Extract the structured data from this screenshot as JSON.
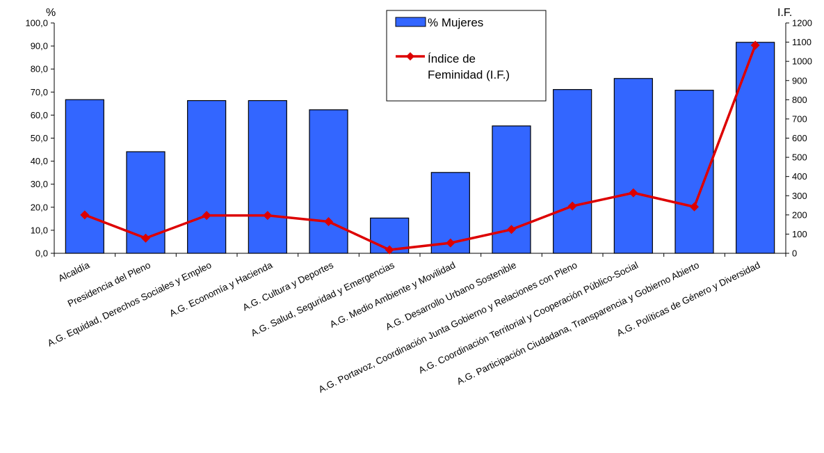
{
  "chart_data": {
    "type": "bar",
    "categories": [
      "Alcaldía",
      "Presidencia del Pleno",
      "A.G. Equidad, Derechos Sociales y Empleo",
      "A.G. Economía y Hacienda",
      "A.G. Cultura y Deportes",
      "A.G. Salud, Seguridad y Emergencias",
      "A.G. Medio Ambiente y Movilidad",
      "A.G. Desarrollo Urbano Sostenible",
      "A.G. Portavoz, Coordinación Junta Gobierno y Relaciones con Pleno",
      "A.G. Coordinación Territorial y Cooperación Público-Social",
      "A.G. Participación Ciudadana, Transparencia y Gobierno Abierto",
      "A.G. Políticas de Género y Diversidad"
    ],
    "series": [
      {
        "name": "% Mujeres",
        "type": "bar",
        "axis": "left",
        "color": "#3366ff",
        "values": [
          66.7,
          44.1,
          66.3,
          66.3,
          62.3,
          15.3,
          35.1,
          55.3,
          71.1,
          75.9,
          70.8,
          91.6
        ]
      },
      {
        "name": "Índice de Feminidad (I.F.)",
        "type": "line",
        "axis": "right",
        "color": "#dd0000",
        "values": [
          200,
          79,
          197,
          197,
          165,
          18,
          54,
          124,
          246,
          315,
          242,
          1084
        ]
      }
    ],
    "y_left": {
      "unit": "%",
      "range": [
        0,
        100
      ],
      "ticks": [
        "0,0",
        "10,0",
        "20,0",
        "30,0",
        "40,0",
        "50,0",
        "60,0",
        "70,0",
        "80,0",
        "90,0",
        "100,0"
      ]
    },
    "y_right": {
      "unit": "I.F.",
      "range": [
        0,
        1200
      ],
      "ticks": [
        "0",
        "100",
        "200",
        "300",
        "400",
        "500",
        "600",
        "700",
        "800",
        "900",
        "1000",
        "1100",
        "1200"
      ]
    },
    "legend": {
      "position": "top-center",
      "bar_label": "% Mujeres",
      "line_label_1": "Índice de",
      "line_label_2": "Feminidad (I.F.)"
    },
    "grid": false
  }
}
